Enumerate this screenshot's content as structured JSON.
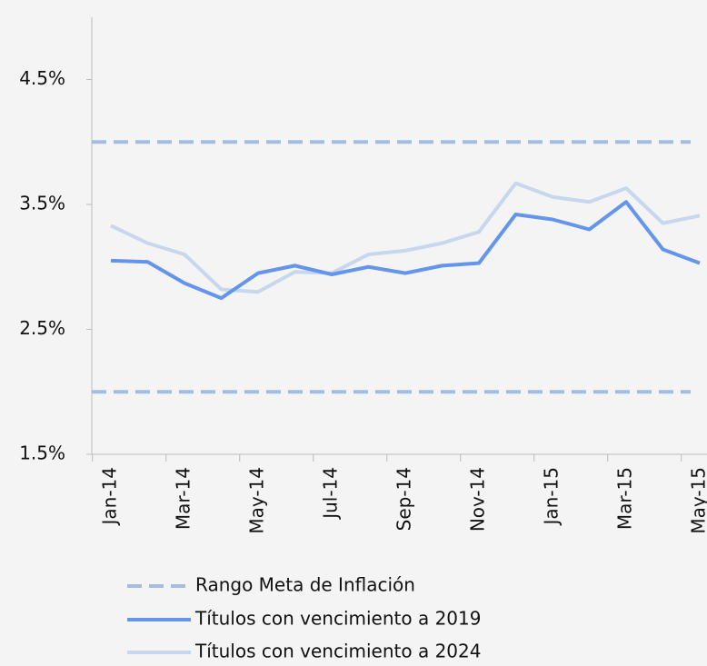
{
  "chart_data": {
    "type": "line",
    "categories": [
      "Jan-14",
      null,
      "Mar-14",
      null,
      "May-14",
      null,
      "Jul-14",
      null,
      "Sep-14",
      null,
      "Nov-14",
      null,
      "Jan-15",
      null,
      "Mar-15",
      null,
      "May-15"
    ],
    "target_range": {
      "name": "Rango Meta de Inflación",
      "color": "#a3bde0",
      "values": [
        2.0,
        4.0
      ]
    },
    "series": [
      {
        "name": "Títulos con vencimiento a 2019",
        "color": "#6495ed",
        "values": [
          3.05,
          3.04,
          2.87,
          2.75,
          2.95,
          3.01,
          2.94,
          3.0,
          2.95,
          3.01,
          3.03,
          3.42,
          3.38,
          3.3,
          3.52,
          3.14,
          3.03
        ]
      },
      {
        "name": "Títulos con vencimiento a 2024",
        "color": "#c6d7ee",
        "values": [
          3.33,
          3.19,
          3.1,
          2.82,
          2.8,
          2.96,
          2.95,
          3.1,
          3.13,
          3.19,
          3.28,
          3.67,
          3.56,
          3.52,
          3.63,
          3.35,
          3.41
        ]
      }
    ],
    "ylim": [
      1.5,
      5.0
    ],
    "yticks": [
      {
        "value": 1.5,
        "label": "1.5%"
      },
      {
        "value": 2.5,
        "label": "2.5%"
      },
      {
        "value": 3.5,
        "label": "3.5%"
      },
      {
        "value": 4.5,
        "label": "4.5%"
      }
    ]
  }
}
